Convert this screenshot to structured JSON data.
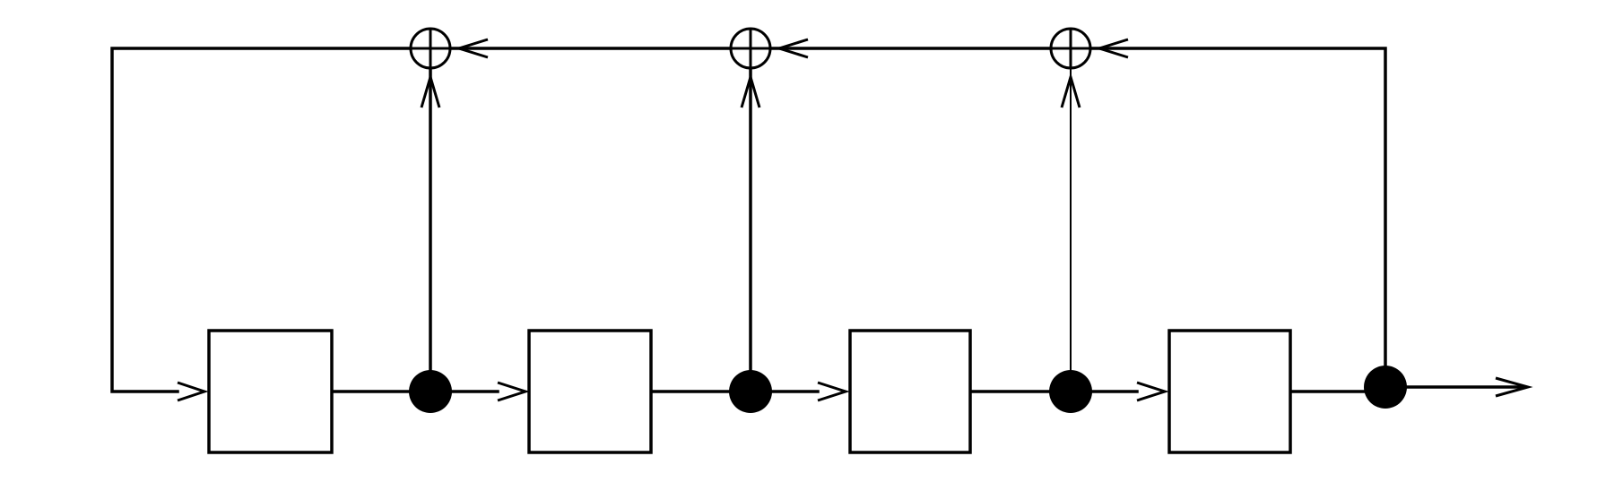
{
  "diagram": {
    "kind": "linear feedback shift register",
    "line_color": "#000000",
    "background_color": "#ffffff",
    "register_count": 4,
    "tap_count": 4,
    "xor_count": 3
  }
}
